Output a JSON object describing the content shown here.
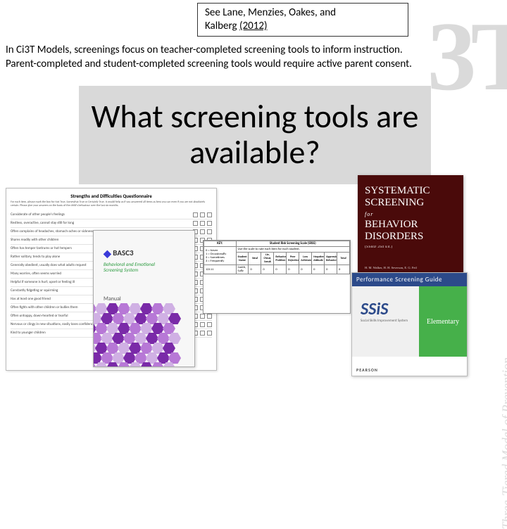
{
  "citation": {
    "line1": "See Lane, Menzies, Oakes, and",
    "line2_prefix": "Kalberg",
    "line2_year": "(2012)"
  },
  "intro": {
    "line1": "In Ci3T Models, screenings focus on teacher-completed screening tools to inform instruction.",
    "line2": "Parent-completed and student-completed screening tools would require active parent consent."
  },
  "headline": "What screening tools are available?",
  "watermark": {
    "big": "3T",
    "vertical": "Three-Tiered Model of Prevention"
  },
  "doc1": {
    "title": "Strengths and Difficulties Questionnaire",
    "instr": "For each item, please mark the box for Not True, Somewhat True or Certainly True. It would help us if you answered all items as best you can even if you are not absolutely certain. Please give your answers on the basis of the child's behaviour over the last six months.",
    "rows": [
      "Considerate of other people's feelings",
      "Restless, overactive, cannot stay still for long",
      "Often complains of headaches, stomach-aches or sickness",
      "Shares readily with other children",
      "Often has temper tantrums or hot tempers",
      "Rather solitary, tends to play alone",
      "Generally obedient, usually does what adults request",
      "Many worries, often seems worried",
      "Helpful if someone is hurt, upset or feeling ill",
      "Constantly fidgeting or squirming",
      "Has at least one good friend",
      "Often fights with other children or bullies them",
      "Often unhappy, down-hearted or tearful",
      "Nervous or clingy in new situations, easily loses confidence",
      "Kind to younger children"
    ]
  },
  "doc2": {
    "logo": "BASC3",
    "subtitle1": "Behavioral and Emotional",
    "subtitle2": "Screening System",
    "manual": "Manual",
    "hex_color": "#7a2aa8",
    "hex_color_alt": "#b778d6"
  },
  "doc3": {
    "header_left": "KEY:",
    "key_rows": [
      "0 = Never",
      "1 = Occasionally",
      "2 = Sometimes",
      "3 = Frequently"
    ],
    "title_right": "Student Risk Screening Scale (SRSS)",
    "note": "Use the scale to rate each item for each student.",
    "columns": [
      "Student ID",
      "Student Name",
      "Steal",
      "Lie, Cheat, Sneak",
      "Behavior Problem",
      "Peer Rejection",
      "Low Achievement",
      "Negative Attitude",
      "Aggressive Behavior",
      "Total"
    ],
    "sample_row": [
      "12111",
      "Smith, Sally",
      "0",
      "0",
      "0",
      "0",
      "0",
      "0",
      "0",
      "0"
    ]
  },
  "doc4": {
    "word1": "SYSTEMATIC",
    "word2": "SCREENING",
    "for": "for",
    "word3": "BEHAVIOR",
    "word4": "DISORDERS",
    "subtitle": "(SSBD 2nd Ed.)",
    "authors": "H. M. Walker, H. H. Severson, E. G. Feil",
    "bg_color": "#4a0a0a"
  },
  "doc5": {
    "bar": "Performance Screening Guide",
    "logo": "SSiS",
    "logo_sub": "Social Skills Improvement System",
    "side": "Elementary",
    "publisher": "PEARSON",
    "bar_color": "#2c4a8a",
    "side_color": "#46b04a"
  }
}
